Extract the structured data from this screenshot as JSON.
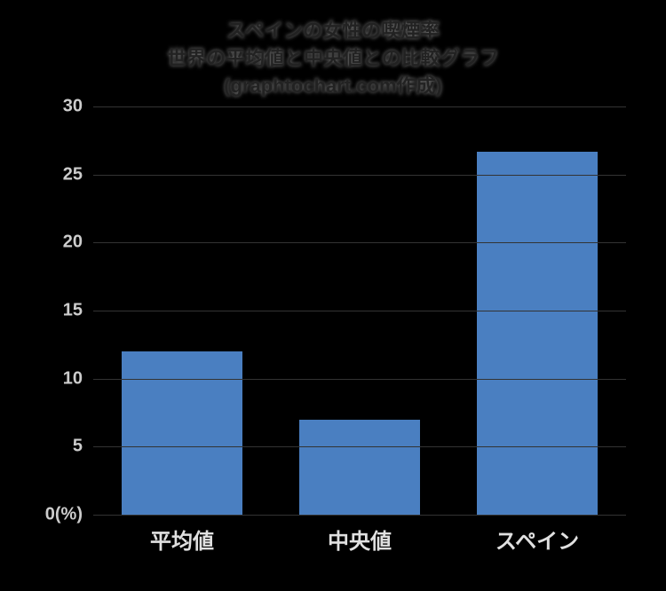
{
  "chart": {
    "type": "bar",
    "title_lines": [
      "スペインの女性の喫煙率",
      "世界の平均値と中央値との比較グラフ",
      "(graphtochart.com作成)"
    ],
    "title_fontsize": 22,
    "title_color": "#222222",
    "background_color": "#000000",
    "categories": [
      "平均値",
      "中央値",
      "スペイン"
    ],
    "values": [
      12.0,
      7.0,
      26.7
    ],
    "bar_colors": [
      "#4a7fc1",
      "#4a7fc1",
      "#4a7fc1"
    ],
    "bar_width": 0.68,
    "ylim": [
      0,
      30
    ],
    "yticks": [
      0,
      5,
      10,
      15,
      20,
      25,
      30
    ],
    "y_unit_label": "0(%)",
    "tick_fontsize": 20,
    "xlabel_fontsize": 24,
    "grid_color": "#333333",
    "tick_color": "#cccccc",
    "xlabel_color": "#e0e0e0"
  }
}
